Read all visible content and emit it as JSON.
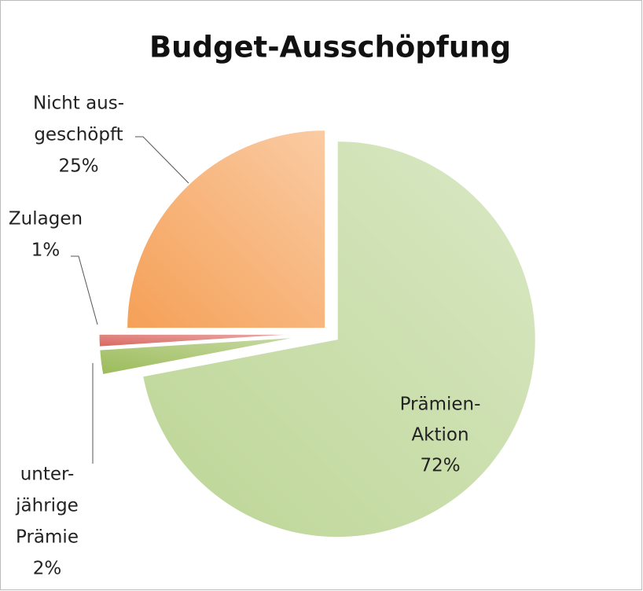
{
  "chart_data": {
    "type": "pie",
    "title": "Budget-Ausschöpfung",
    "categories": [
      [
        "Prämien-",
        "Aktion"
      ],
      [
        "unter-",
        "jährige",
        "Prämie"
      ],
      [
        "Zulagen"
      ],
      [
        "Nicht aus-",
        "geschöpft"
      ]
    ],
    "values": [
      72,
      2,
      1,
      25
    ],
    "value_labels": [
      "72%",
      "2%",
      "1%",
      "25%"
    ],
    "colors": [
      "#bcd595",
      "#9bbb59",
      "#d9665f",
      "#f5a057"
    ],
    "start_angle": 0,
    "direction": "clockwise"
  }
}
